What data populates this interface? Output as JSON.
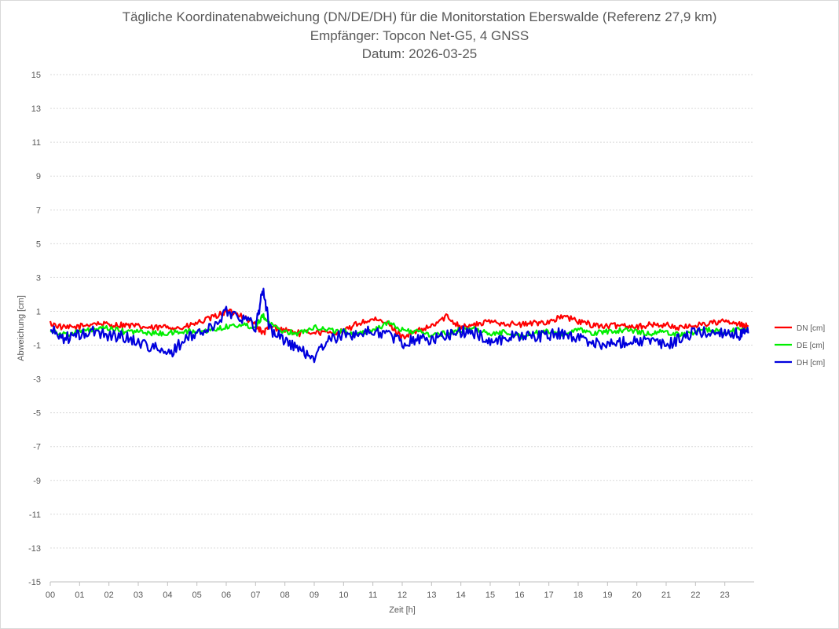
{
  "chart_data": {
    "type": "line",
    "title": "Tägliche Koordinatenabweichung (DN/DE/DH) für die Monitorstation Eberswalde (Referenz 27,9 km)",
    "subtitle": "Empfänger: Topcon Net-G5, 4 GNSS",
    "date_line": "Datum: 2026-03-25",
    "xlabel": "Zeit [h]",
    "ylabel": "Abweichung [cm]",
    "x_tick_labels": [
      "00",
      "01",
      "02",
      "03",
      "04",
      "05",
      "06",
      "07",
      "08",
      "09",
      "10",
      "11",
      "12",
      "13",
      "14",
      "15",
      "16",
      "17",
      "18",
      "19",
      "20",
      "21",
      "22",
      "23"
    ],
    "y_ticks": [
      15,
      13,
      11,
      9,
      7,
      5,
      3,
      1,
      -1,
      -3,
      -5,
      -7,
      -9,
      -11,
      -13,
      -15
    ],
    "ylim": [
      -15,
      15
    ],
    "xlim": [
      0,
      24
    ],
    "grid": "horizontal dotted",
    "legend_position": "right",
    "x": [
      0,
      0.5,
      1,
      1.5,
      2,
      2.5,
      3,
      3.5,
      4,
      4.5,
      5,
      5.5,
      6,
      6.5,
      7,
      7.25,
      7.5,
      8,
      8.5,
      9,
      9.5,
      10,
      10.5,
      11,
      11.5,
      12,
      12.5,
      13,
      13.5,
      14,
      14.5,
      15,
      15.5,
      16,
      16.5,
      17,
      17.5,
      18,
      18.5,
      19,
      19.5,
      20,
      20.5,
      21,
      21.5,
      22,
      22.5,
      23,
      23.5,
      23.8
    ],
    "series": [
      {
        "name": "DN [cm]",
        "color": "#ff0000",
        "values": [
          0.3,
          0.0,
          0.1,
          0.3,
          0.2,
          0.2,
          0.1,
          0.0,
          0.1,
          0.0,
          0.3,
          0.6,
          1.0,
          0.8,
          0.2,
          -0.3,
          0.1,
          -0.1,
          -0.3,
          -0.2,
          -0.3,
          -0.2,
          0.3,
          0.5,
          0.3,
          -0.5,
          -0.2,
          0.1,
          0.7,
          0.1,
          0.2,
          0.4,
          0.3,
          0.2,
          0.3,
          0.4,
          0.7,
          0.4,
          0.2,
          0.1,
          0.2,
          0.1,
          0.2,
          0.2,
          0.0,
          0.2,
          0.3,
          0.4,
          0.2,
          0.1
        ]
      },
      {
        "name": "DE [cm]",
        "color": "#00ee00",
        "values": [
          -0.1,
          -0.4,
          -0.2,
          -0.1,
          0.0,
          -0.2,
          -0.2,
          -0.3,
          -0.3,
          -0.2,
          -0.2,
          -0.1,
          0.1,
          0.2,
          0.1,
          0.8,
          0.2,
          -0.2,
          -0.3,
          0.1,
          -0.1,
          -0.2,
          -0.3,
          -0.1,
          0.3,
          -0.1,
          -0.2,
          -0.4,
          -0.3,
          -0.1,
          0.0,
          -0.4,
          -0.2,
          -0.5,
          -0.3,
          -0.2,
          -0.3,
          -0.1,
          -0.3,
          -0.2,
          -0.1,
          -0.2,
          -0.3,
          -0.2,
          -0.4,
          -0.2,
          -0.1,
          -0.2,
          -0.1,
          -0.2
        ]
      },
      {
        "name": "DH [cm]",
        "color": "#0000dd",
        "values": [
          -0.1,
          -0.6,
          -0.4,
          -0.2,
          -0.4,
          -0.5,
          -0.8,
          -1.1,
          -1.6,
          -0.8,
          -0.3,
          0.0,
          1.0,
          0.7,
          0.1,
          2.3,
          -0.1,
          -0.7,
          -1.3,
          -1.7,
          -0.7,
          -0.4,
          -0.3,
          -0.2,
          -0.3,
          -0.9,
          -0.6,
          -0.7,
          -0.4,
          -0.2,
          -0.3,
          -0.8,
          -0.6,
          -0.4,
          -0.5,
          -0.4,
          -0.3,
          -0.6,
          -0.8,
          -1.0,
          -0.8,
          -0.7,
          -0.8,
          -1.0,
          -0.6,
          -0.2,
          -0.3,
          -0.2,
          -0.4,
          -0.3
        ]
      }
    ]
  }
}
